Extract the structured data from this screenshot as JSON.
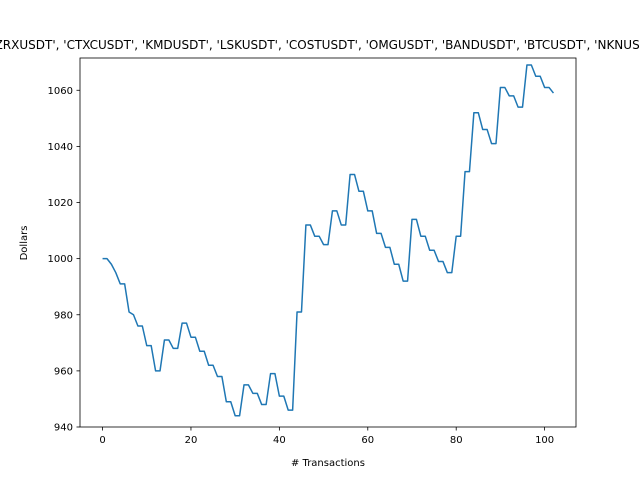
{
  "chart_data": {
    "type": "line",
    "title": "['LTCUSDT', 'EOSUSDT', 'QTUMUSDT', 'ZRXUSDT', 'CTXCUSDT', 'KMDUSDT', 'LSKUSDT', 'COSTUSDT', 'OMGUSDT', 'BANDUSDT', 'BTCUSDT', 'NKNUSDT', 'RSRUSDT', 'IOTAUSDT', 'DASHUSDT']",
    "xlabel": "# Transactions",
    "ylabel": "Dollars",
    "xlim": [
      -5.1,
      107.1
    ],
    "ylim": [
      940.0,
      1071.5
    ],
    "xticks": [
      0,
      20,
      40,
      60,
      80,
      100
    ],
    "yticks": [
      940,
      960,
      980,
      1000,
      1020,
      1040,
      1060
    ],
    "grid": false,
    "line_color": "#1f77b4",
    "series": [
      {
        "x": [
          0,
          1,
          2,
          3,
          4,
          5,
          6,
          7,
          8,
          9,
          10,
          11,
          12,
          13,
          14,
          15,
          16,
          17,
          18,
          19,
          20,
          21,
          22,
          23,
          24,
          25,
          26,
          27,
          28,
          29,
          30,
          31,
          32,
          33,
          34,
          35,
          36,
          37,
          38,
          39,
          40,
          41,
          42,
          43,
          44,
          45,
          46,
          47,
          48,
          49,
          50,
          51,
          52,
          53,
          54,
          55,
          56,
          57,
          58,
          59,
          60,
          61,
          62,
          63,
          64,
          65,
          66,
          67,
          68,
          69,
          70,
          71,
          72,
          73,
          74,
          75,
          76,
          77,
          78,
          79,
          80,
          81,
          82,
          83,
          84,
          85,
          86,
          87,
          88,
          89,
          90,
          91,
          92,
          93,
          94,
          95,
          96,
          97,
          98,
          99,
          100,
          101,
          102
        ],
        "y": [
          1000,
          1000,
          998,
          995,
          991,
          991,
          981,
          980,
          976,
          976,
          969,
          969,
          960,
          960,
          971,
          971,
          968,
          968,
          977,
          977,
          972,
          972,
          967,
          967,
          962,
          962,
          958,
          958,
          949,
          949,
          944,
          944,
          955,
          955,
          952,
          952,
          948,
          948,
          959,
          959,
          951,
          951,
          946,
          946,
          981,
          981,
          1012,
          1012,
          1008,
          1008,
          1005,
          1005,
          1017,
          1017,
          1012,
          1012,
          1030,
          1030,
          1024,
          1024,
          1017,
          1017,
          1009,
          1009,
          1004,
          1004,
          998,
          998,
          992,
          992,
          1014,
          1014,
          1008,
          1008,
          1003,
          1003,
          999,
          999,
          995,
          995,
          1008,
          1008,
          1031,
          1031,
          1052,
          1052,
          1046,
          1046,
          1041,
          1041,
          1061,
          1061,
          1058,
          1058,
          1054,
          1054,
          1069,
          1069,
          1065,
          1065,
          1061,
          1061,
          1059
        ]
      }
    ]
  }
}
